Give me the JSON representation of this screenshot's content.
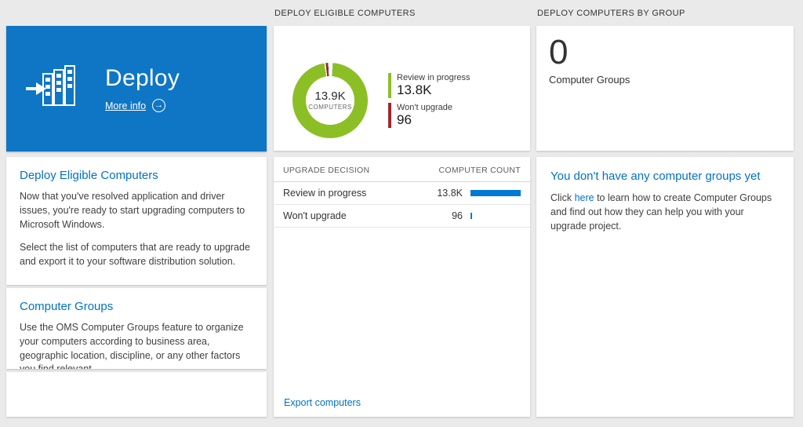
{
  "colors": {
    "accent_blue": "#0072c6",
    "tile_blue": "#0e76c5",
    "green": "#8cbf26",
    "dark_red": "#9e282c",
    "bar_blue": "#0078d4",
    "gap_white": "#ffffff"
  },
  "icons": {
    "arrow_right": "→"
  },
  "left": {
    "tile": {
      "title": "Deploy",
      "more_info": "More info"
    },
    "sections": [
      {
        "heading": "Deploy Eligible Computers",
        "paragraphs": [
          "Now that you've resolved application and driver issues, you're ready to start upgrading computers to Microsoft Windows.",
          "Select the list of computers that are ready to upgrade and export it to your software distribution solution."
        ]
      },
      {
        "heading": "Computer Groups",
        "paragraphs": [
          "Use the OMS Computer Groups feature to organize your computers according to business area, geographic location, discipline, or any other factors you find relevant."
        ]
      }
    ]
  },
  "middle": {
    "header": "DEPLOY ELIGIBLE COMPUTERS",
    "donut": {
      "center_value": "13.9K",
      "center_label": "COMPUTERS",
      "legend": [
        {
          "label": "Review in progress",
          "value": "13.8K",
          "color": "#8cbf26"
        },
        {
          "label": "Won't upgrade",
          "value": "96",
          "color": "#9e282c"
        }
      ]
    },
    "table": {
      "columns": [
        "UPGRADE DECISION",
        "COMPUTER COUNT"
      ],
      "rows": [
        {
          "decision": "Review in progress",
          "count": "13.8K",
          "bar_width": "100%"
        },
        {
          "decision": "Won't upgrade",
          "count": "96",
          "bar_width": "3%"
        }
      ]
    },
    "export_link": "Export computers"
  },
  "right": {
    "header": "DEPLOY COMPUTERS BY GROUP",
    "count": "0",
    "count_label": "Computer Groups",
    "empty": {
      "heading": "You don't have any computer groups yet",
      "text_before": "Click ",
      "link": "here",
      "text_after": " to learn how to create Computer Groups and find out how they can help you with your upgrade project."
    }
  },
  "chart_data": {
    "type": "pie",
    "style": "donut",
    "title": "Deploy Eligible Computers",
    "categories": [
      "Review in progress",
      "Won't upgrade"
    ],
    "values": [
      13800,
      96
    ],
    "colors": [
      "#8cbf26",
      "#9e282c"
    ],
    "center_total": "13.9K",
    "center_label": "COMPUTERS",
    "legend_position": "right"
  }
}
